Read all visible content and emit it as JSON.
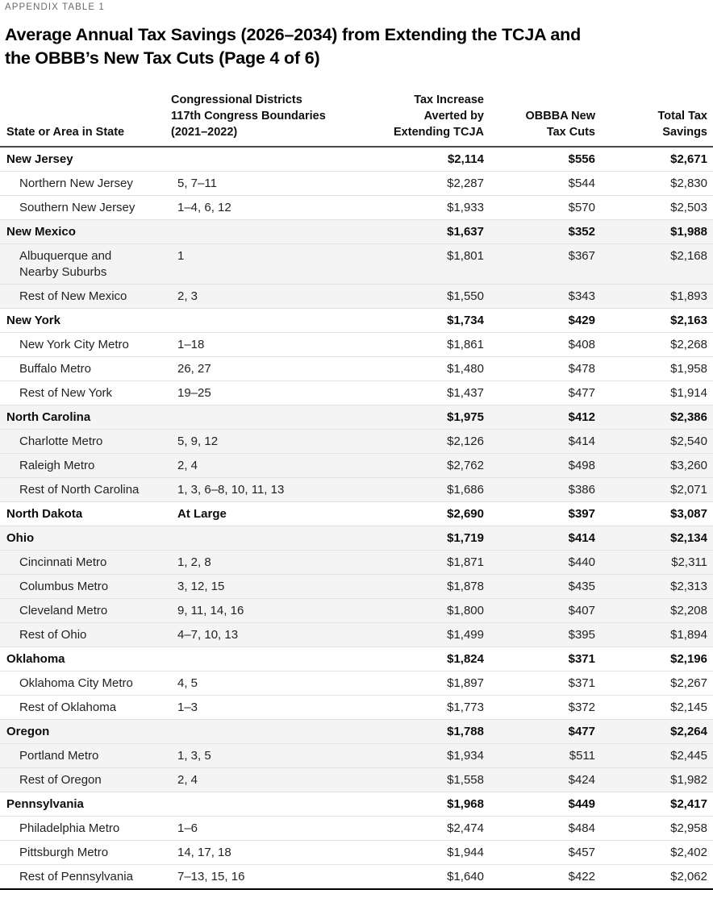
{
  "page": {
    "eyebrow": "APPENDIX TABLE 1",
    "title": "Average Annual Tax Savings (2026–2034) from Extending the TCJA and\nthe OBBB’s New Tax Cuts (Page 4 of 6)"
  },
  "style": {
    "row_shade": "#f4f4f4",
    "divider": "#e2e2e2",
    "header_rule": "#4a4a4a",
    "text": "#1b1b1b"
  },
  "table": {
    "columns": [
      "State or Area in State",
      "Congressional Districts\n117th Congress Boundaries\n(2021–2022)",
      "Tax Increase\nAverted by\nExtending TCJA",
      "OBBBA New\nTax Cuts",
      "Total Tax\nSavings"
    ],
    "rows": [
      {
        "state": true,
        "shaded": false,
        "name": "New Jersey",
        "districts": "",
        "tcja": "$2,114",
        "obbba": "$556",
        "total": "$2,671"
      },
      {
        "state": false,
        "shaded": false,
        "name": "Northern New Jersey",
        "districts": "5, 7–11",
        "tcja": "$2,287",
        "obbba": "$544",
        "total": "$2,830"
      },
      {
        "state": false,
        "shaded": false,
        "name": "Southern New Jersey",
        "districts": "1–4, 6, 12",
        "tcja": "$1,933",
        "obbba": "$570",
        "total": "$2,503"
      },
      {
        "state": true,
        "shaded": true,
        "name": "New Mexico",
        "districts": "",
        "tcja": "$1,637",
        "obbba": "$352",
        "total": "$1,988"
      },
      {
        "state": false,
        "shaded": true,
        "name": "Albuquerque and\nNearby Suburbs",
        "districts": "1",
        "tcja": "$1,801",
        "obbba": "$367",
        "total": "$2,168"
      },
      {
        "state": false,
        "shaded": true,
        "name": "Rest of New Mexico",
        "districts": "2, 3",
        "tcja": "$1,550",
        "obbba": "$343",
        "total": "$1,893"
      },
      {
        "state": true,
        "shaded": false,
        "name": "New York",
        "districts": "",
        "tcja": "$1,734",
        "obbba": "$429",
        "total": "$2,163"
      },
      {
        "state": false,
        "shaded": false,
        "name": "New York City Metro",
        "districts": "1–18",
        "tcja": "$1,861",
        "obbba": "$408",
        "total": "$2,268"
      },
      {
        "state": false,
        "shaded": false,
        "name": "Buffalo Metro",
        "districts": "26, 27",
        "tcja": "$1,480",
        "obbba": "$478",
        "total": "$1,958"
      },
      {
        "state": false,
        "shaded": false,
        "name": "Rest of New York",
        "districts": "19–25",
        "tcja": "$1,437",
        "obbba": "$477",
        "total": "$1,914"
      },
      {
        "state": true,
        "shaded": true,
        "name": "North Carolina",
        "districts": "",
        "tcja": "$1,975",
        "obbba": "$412",
        "total": "$2,386"
      },
      {
        "state": false,
        "shaded": true,
        "name": "Charlotte Metro",
        "districts": "5, 9, 12",
        "tcja": "$2,126",
        "obbba": "$414",
        "total": "$2,540"
      },
      {
        "state": false,
        "shaded": true,
        "name": "Raleigh Metro",
        "districts": "2, 4",
        "tcja": "$2,762",
        "obbba": "$498",
        "total": "$3,260"
      },
      {
        "state": false,
        "shaded": true,
        "name": "Rest of North Carolina",
        "districts": "1, 3, 6–8, 10, 11, 13",
        "tcja": "$1,686",
        "obbba": "$386",
        "total": "$2,071"
      },
      {
        "state": true,
        "shaded": false,
        "name": "North Dakota",
        "districts": "At Large",
        "tcja": "$2,690",
        "obbba": "$397",
        "total": "$3,087"
      },
      {
        "state": true,
        "shaded": true,
        "name": "Ohio",
        "districts": "",
        "tcja": "$1,719",
        "obbba": "$414",
        "total": "$2,134"
      },
      {
        "state": false,
        "shaded": true,
        "name": "Cincinnati Metro",
        "districts": "1, 2, 8",
        "tcja": "$1,871",
        "obbba": "$440",
        "total": "$2,311"
      },
      {
        "state": false,
        "shaded": true,
        "name": "Columbus Metro",
        "districts": "3, 12, 15",
        "tcja": "$1,878",
        "obbba": "$435",
        "total": "$2,313"
      },
      {
        "state": false,
        "shaded": true,
        "name": "Cleveland Metro",
        "districts": "9, 11, 14, 16",
        "tcja": "$1,800",
        "obbba": "$407",
        "total": "$2,208"
      },
      {
        "state": false,
        "shaded": true,
        "name": "Rest of Ohio",
        "districts": "4–7, 10, 13",
        "tcja": "$1,499",
        "obbba": "$395",
        "total": "$1,894"
      },
      {
        "state": true,
        "shaded": false,
        "name": "Oklahoma",
        "districts": "",
        "tcja": "$1,824",
        "obbba": "$371",
        "total": "$2,196"
      },
      {
        "state": false,
        "shaded": false,
        "name": "Oklahoma City Metro",
        "districts": "4, 5",
        "tcja": "$1,897",
        "obbba": "$371",
        "total": "$2,267"
      },
      {
        "state": false,
        "shaded": false,
        "name": "Rest of Oklahoma",
        "districts": "1–3",
        "tcja": "$1,773",
        "obbba": "$372",
        "total": "$2,145"
      },
      {
        "state": true,
        "shaded": true,
        "name": "Oregon",
        "districts": "",
        "tcja": "$1,788",
        "obbba": "$477",
        "total": "$2,264"
      },
      {
        "state": false,
        "shaded": true,
        "name": "Portland Metro",
        "districts": "1, 3, 5",
        "tcja": "$1,934",
        "obbba": "$511",
        "total": "$2,445"
      },
      {
        "state": false,
        "shaded": true,
        "name": "Rest of Oregon",
        "districts": "2, 4",
        "tcja": "$1,558",
        "obbba": "$424",
        "total": "$1,982"
      },
      {
        "state": true,
        "shaded": false,
        "name": "Pennsylvania",
        "districts": "",
        "tcja": "$1,968",
        "obbba": "$449",
        "total": "$2,417"
      },
      {
        "state": false,
        "shaded": false,
        "name": "Philadelphia Metro",
        "districts": "1–6",
        "tcja": "$2,474",
        "obbba": "$484",
        "total": "$2,958"
      },
      {
        "state": false,
        "shaded": false,
        "name": "Pittsburgh Metro",
        "districts": "14, 17, 18",
        "tcja": "$1,944",
        "obbba": "$457",
        "total": "$2,402"
      },
      {
        "state": false,
        "shaded": false,
        "name": "Rest of Pennsylvania",
        "districts": "7–13, 15, 16",
        "tcja": "$1,640",
        "obbba": "$422",
        "total": "$2,062"
      }
    ]
  }
}
